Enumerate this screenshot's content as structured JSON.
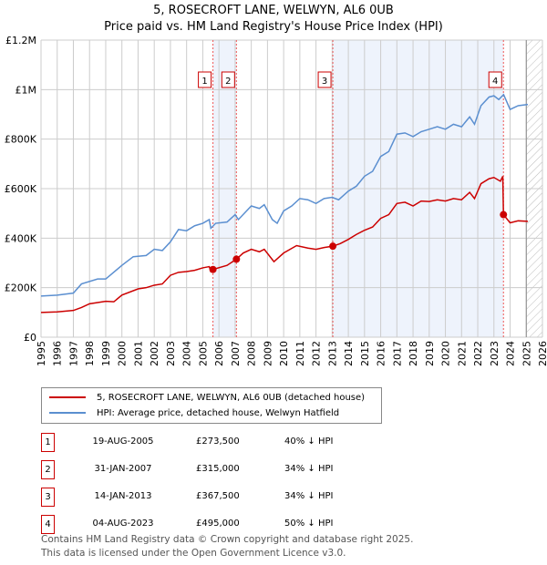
{
  "title": "5, ROSECROFT LANE, WELWYN, AL6 0UB",
  "subtitle": "Price paid vs. HM Land Registry's House Price Index (HPI)",
  "chart_data": {
    "type": "line",
    "xlim": [
      1995,
      2026
    ],
    "ylim": [
      0,
      1200000
    ],
    "x_ticks": [
      "1995",
      "1996",
      "1997",
      "1998",
      "1999",
      "2000",
      "2001",
      "2002",
      "2003",
      "2004",
      "2005",
      "2006",
      "2007",
      "2008",
      "2009",
      "2010",
      "2011",
      "2012",
      "2013",
      "2014",
      "2015",
      "2016",
      "2017",
      "2018",
      "2019",
      "2020",
      "2021",
      "2022",
      "2023",
      "2024",
      "2025",
      "2026"
    ],
    "y_ticks": [
      {
        "v": 0,
        "label": "£0"
      },
      {
        "v": 200000,
        "label": "£200K"
      },
      {
        "v": 400000,
        "label": "£400K"
      },
      {
        "v": 600000,
        "label": "£600K"
      },
      {
        "v": 800000,
        "label": "£800K"
      },
      {
        "v": 1000000,
        "label": "£1M"
      },
      {
        "v": 1200000,
        "label": "£1.2M"
      }
    ],
    "forecast_from": 2025.0,
    "series": [
      {
        "name": "5, ROSECROFT LANE, WELWYN, AL6 0UB (detached house)",
        "color": "#cc0000",
        "x": [
          1995,
          1996,
          1997,
          1997.5,
          1998,
          1999,
          1999.5,
          2000,
          2001,
          2001.5,
          2002,
          2002.5,
          2003,
          2003.5,
          2004,
          2004.5,
          2005,
          2005.4,
          2005.5,
          2005.63,
          2006.5,
          2007.08,
          2007.5,
          2008,
          2008.5,
          2008.8,
          2009.4,
          2010,
          2010.8,
          2011.5,
          2012,
          2012.5,
          2013.04,
          2013.5,
          2014,
          2014.5,
          2015,
          2015.5,
          2016,
          2016.5,
          2017,
          2017.5,
          2018,
          2018.5,
          2019,
          2019.5,
          2020,
          2020.5,
          2021,
          2021.5,
          2021.8,
          2022.2,
          2022.7,
          2023,
          2023.4,
          2023.55,
          2023.59,
          2024,
          2024.5,
          2025.1
        ],
        "y": [
          100000,
          102000,
          108000,
          120000,
          135000,
          145000,
          143000,
          170000,
          195000,
          200000,
          210000,
          215000,
          250000,
          262000,
          265000,
          270000,
          280000,
          285000,
          265000,
          273500,
          290000,
          315000,
          340000,
          355000,
          345000,
          355000,
          305000,
          340000,
          370000,
          360000,
          355000,
          362000,
          367500,
          378000,
          395000,
          415000,
          432000,
          445000,
          480000,
          495000,
          540000,
          545000,
          530000,
          550000,
          548000,
          555000,
          550000,
          560000,
          555000,
          585000,
          560000,
          620000,
          640000,
          645000,
          630000,
          650000,
          495000,
          462000,
          470000,
          468000
        ]
      },
      {
        "name": "HPI: Average price, detached house, Welwyn Hatfield",
        "color": "#5b8fd0",
        "x": [
          1995,
          1996,
          1997,
          1997.5,
          1998.5,
          1999,
          2000,
          2000.7,
          2001.5,
          2002,
          2002.5,
          2003,
          2003.5,
          2004,
          2004.5,
          2005,
          2005.4,
          2005.5,
          2005.8,
          2006.5,
          2007,
          2007.2,
          2008,
          2008.5,
          2008.8,
          2009.3,
          2009.6,
          2010,
          2010.5,
          2011,
          2011.5,
          2012,
          2012.5,
          2013,
          2013.4,
          2014,
          2014.5,
          2015,
          2015.5,
          2016,
          2016.5,
          2017,
          2017.5,
          2018,
          2018.5,
          2019,
          2019.5,
          2020,
          2020.5,
          2021,
          2021.5,
          2021.8,
          2022.2,
          2022.7,
          2023,
          2023.3,
          2023.6,
          2024,
          2024.5,
          2025.1
        ],
        "y": [
          166000,
          170000,
          178000,
          215000,
          235000,
          235000,
          290000,
          325000,
          330000,
          355000,
          350000,
          385000,
          435000,
          430000,
          450000,
          460000,
          475000,
          440000,
          460000,
          465000,
          495000,
          475000,
          530000,
          520000,
          535000,
          475000,
          460000,
          510000,
          530000,
          560000,
          555000,
          540000,
          560000,
          565000,
          555000,
          590000,
          610000,
          650000,
          670000,
          730000,
          750000,
          820000,
          825000,
          810000,
          830000,
          840000,
          850000,
          840000,
          860000,
          850000,
          890000,
          860000,
          935000,
          970000,
          975000,
          960000,
          980000,
          920000,
          935000,
          940000
        ]
      }
    ],
    "sales": [
      {
        "n": "1",
        "x": 2005.63,
        "date": "19-AUG-2005",
        "price": 273500,
        "price_label": "£273,500",
        "hpi": "40% ↓ HPI"
      },
      {
        "n": "2",
        "x": 2007.08,
        "date": "31-JAN-2007",
        "price": 315000,
        "price_label": "£315,000",
        "hpi": "34% ↓ HPI"
      },
      {
        "n": "3",
        "x": 2013.04,
        "date": "14-JAN-2013",
        "price": 367500,
        "price_label": "£367,500",
        "hpi": "34% ↓ HPI"
      },
      {
        "n": "4",
        "x": 2023.59,
        "date": "04-AUG-2023",
        "price": 495000,
        "price_label": "£495,000",
        "hpi": "50% ↓ HPI"
      }
    ],
    "shaded_ranges": [
      [
        2005.63,
        2007.08
      ],
      [
        2013.04,
        2023.59
      ]
    ]
  },
  "legend": {
    "property": "5, ROSECROFT LANE, WELWYN, AL6 0UB (detached house)",
    "hpi": "HPI: Average price, detached house, Welwyn Hatfield"
  },
  "footer": {
    "line1": "Contains HM Land Registry data © Crown copyright and database right 2025.",
    "line2": "This data is licensed under the Open Government Licence v3.0."
  }
}
